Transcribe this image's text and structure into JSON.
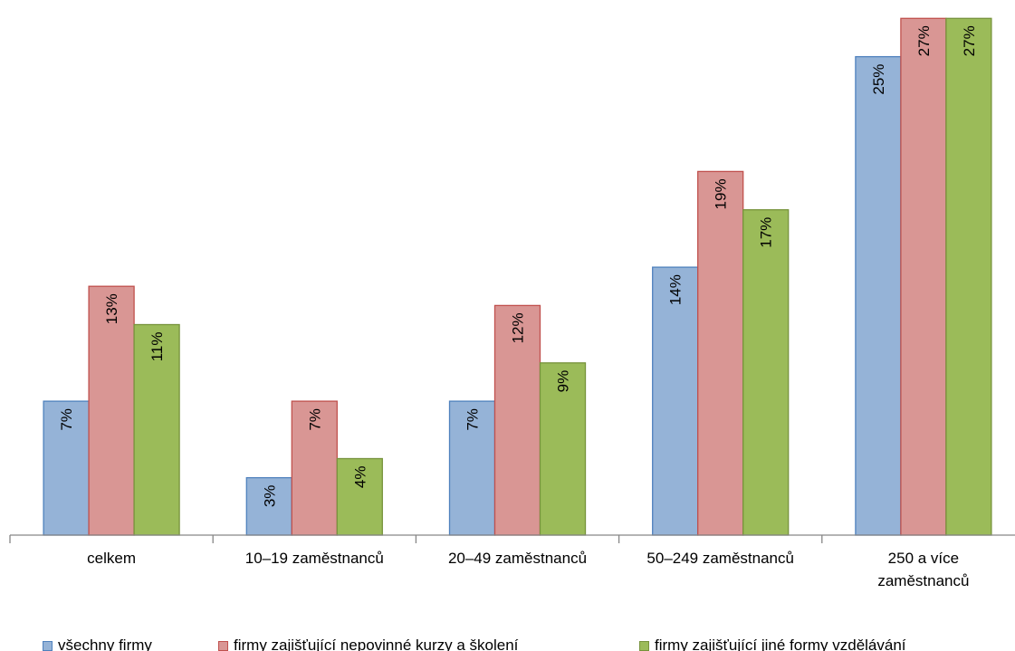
{
  "chart_data": {
    "type": "bar",
    "categories": [
      [
        "celkem"
      ],
      [
        "10–19 zaměstnanců"
      ],
      [
        "20–49 zaměstnanců"
      ],
      [
        "50–249 zaměstnanců"
      ],
      [
        "250 a více",
        "zaměstnanců"
      ]
    ],
    "series": [
      {
        "name": "všechny firmy",
        "values": [
          7,
          3,
          7,
          14,
          25
        ],
        "labels": [
          "7%",
          "3%",
          "7%",
          "14%",
          "25%"
        ],
        "color": "#95B3D7",
        "border": "#4F81BD"
      },
      {
        "name": "firmy zajišťující nepovinné kurzy a školení",
        "values": [
          13,
          7,
          12,
          19,
          27
        ],
        "labels": [
          "13%",
          "7%",
          "12%",
          "19%",
          "27%"
        ],
        "color": "#D99694",
        "border": "#C0504D"
      },
      {
        "name": "firmy zajišťující jiné formy vzdělávání",
        "values": [
          11,
          4,
          9,
          17,
          27
        ],
        "labels": [
          "11%",
          "4%",
          "9%",
          "17%",
          "27%"
        ],
        "color": "#9BBB59",
        "border": "#77933C"
      }
    ],
    "ylim": [
      0,
      27.3
    ],
    "grid": false,
    "legend": "bottom",
    "data_label_orientation": "vertical"
  }
}
